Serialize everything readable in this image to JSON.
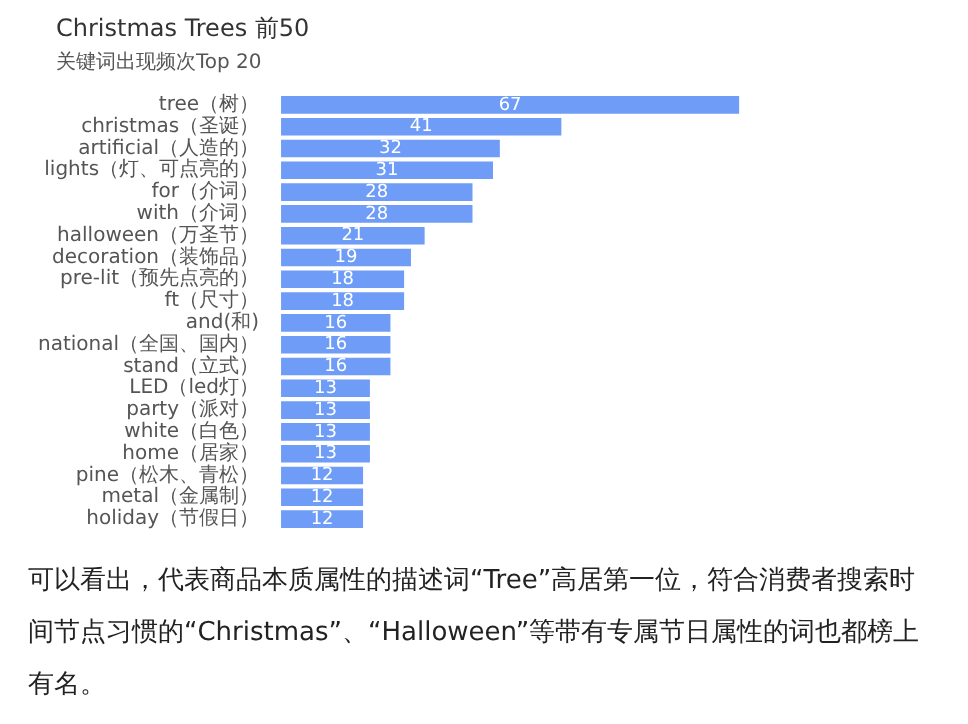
{
  "chart_data": {
    "type": "bar",
    "orientation": "horizontal",
    "title": "Christmas Trees 前50",
    "subtitle": "关键词出现频次Top 20",
    "categories": [
      "tree（树）",
      "christmas（圣诞）",
      "artificial（人造的）",
      "lights（灯、可点亮的）",
      "for（介词）",
      "with（介词）",
      "halloween（万圣节）",
      "decoration（装饰品）",
      "pre-lit（预先点亮的）",
      "ft（尺寸）",
      "and(和)",
      "national（全国、国内）",
      "stand（立式）",
      "LED（led灯）",
      "party（派对）",
      "white（白色）",
      "home（居家）",
      "pine（松木、青松）",
      "metal（金属制）",
      "holiday（节假日）"
    ],
    "values": [
      67,
      41,
      32,
      31,
      28,
      28,
      21,
      19,
      18,
      18,
      16,
      16,
      16,
      13,
      13,
      13,
      13,
      12,
      12,
      12
    ],
    "color": "#6e9cf7",
    "data_labels": true,
    "tick_labels": "y",
    "legend": false,
    "annotations": [
      "可以看出，代表商品本质属性的描述词“Tree”高居第一位，符合消费者搜索时间节点习惯的“Christmas”、“Halloween”等带有专属节日属性的词也都榜上有名。"
    ]
  }
}
